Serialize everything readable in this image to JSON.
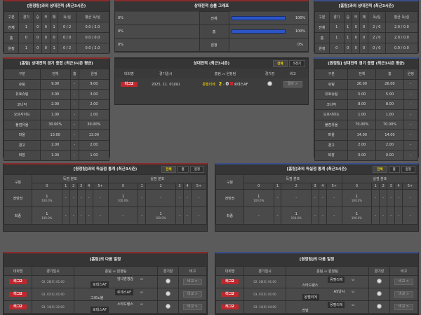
{
  "h2h_cols": [
    "구분",
    "경기",
    "승",
    "무",
    "패",
    "득/실",
    "평균 득/실"
  ],
  "h2h_left": {
    "title": "[원정팀]과의 상대전적 (최근3시즌)",
    "rows": [
      [
        "전체",
        "1",
        "0",
        "0",
        "1",
        "0 / 2",
        "0.0 / 2.0"
      ],
      [
        "홈",
        "0",
        "0",
        "0",
        "0",
        "0 / 0",
        "0.0 / 0.0"
      ],
      [
        "원정",
        "1",
        "0",
        "0",
        "1",
        "0 / 2",
        "0.0 / 2.0"
      ]
    ]
  },
  "h2h_right": {
    "title": "[홈팀]과의 상대전적 (최근3시즌)",
    "rows": [
      [
        "전체",
        "1",
        "1",
        "0",
        "0",
        "2 / 0",
        "2.0 / 0.0"
      ],
      [
        "홈",
        "1",
        "1",
        "0",
        "0",
        "2 / 0",
        "2.0 / 0.0"
      ],
      [
        "원정",
        "0",
        "0",
        "0",
        "0",
        "0 / 0",
        "0.0 / 0.0"
      ]
    ]
  },
  "graph": {
    "title": "상대전적 승률 그래프",
    "rows": [
      {
        "left": "0%",
        "label": "전체",
        "right": "100%",
        "value": 100
      },
      {
        "left": "0%",
        "label": "홈",
        "right": "100%",
        "value": 100
      },
      {
        "left": "0%",
        "label": "원정",
        "right": "0%",
        "value": 0
      }
    ],
    "bar_color": "#2c55c8"
  },
  "stats_cols": [
    "구분",
    "전체",
    "홈",
    "원정"
  ],
  "stats_left": {
    "title": "[홈팀] 상대전적 경기 종합 (최근3시즌 평균)",
    "rows": [
      [
        "슈팅",
        "9.00",
        "-",
        "9.00"
      ],
      [
        "유효슈팅",
        "3.00",
        "-",
        "3.00"
      ],
      [
        "코너킥",
        "2.00",
        "-",
        "2.00"
      ],
      [
        "오프사이드",
        "1.00",
        "-",
        "1.00"
      ],
      [
        "볼점유율",
        "30.00%",
        "-",
        "30.00%"
      ],
      [
        "파울",
        "13.00",
        "-",
        "13.00"
      ],
      [
        "경고",
        "2.00",
        "-",
        "2.00"
      ],
      [
        "퇴장",
        "1.00",
        "-",
        "1.00"
      ]
    ]
  },
  "stats_right": {
    "title": "[원정팀] 상대전적 경기 종합 (최근3시즌 평균)",
    "rows": [
      [
        "슈팅",
        "26.00",
        "26.00",
        "-"
      ],
      [
        "유효슈팅",
        "5.00",
        "5.00",
        "-"
      ],
      [
        "코너킥",
        "8.00",
        "8.00",
        "-"
      ],
      [
        "오프사이드",
        "1.00",
        "1.00",
        "-"
      ],
      [
        "볼점유율",
        "70.00%",
        "70.00%",
        "-"
      ],
      [
        "파울",
        "14.00",
        "14.00",
        "-"
      ],
      [
        "경고",
        "2.00",
        "2.00",
        "-"
      ],
      [
        "퇴장",
        "0.00",
        "0.00",
        "-"
      ]
    ]
  },
  "recent": {
    "title": "상대전적 (최근3시즌)",
    "tabs": [
      "전체",
      "5경기"
    ],
    "cols": [
      "대회명",
      "경기일시",
      "홈팀",
      "vs",
      "원정팀",
      "경기장",
      "비고"
    ],
    "match": {
      "league": "리그2",
      "date": "2025. 11. 01(토)",
      "home": "몽펠리에",
      "score_home": "2",
      "dash": "-",
      "score_away": "0",
      "away": "로데스AF",
      "button": "결과 >"
    }
  },
  "goals_cols": {
    "group": "구분",
    "scored": "득점 분포",
    "conceded": "실점 분포",
    "buckets": [
      "0",
      "1",
      "2",
      "3",
      "4",
      "5+"
    ]
  },
  "goals_left": {
    "title": "[원정팀]과의 득실점 통계 (최근3시즌)",
    "tabs": [
      "전체",
      "홈",
      "원정"
    ],
    "rows": [
      {
        "label": "전반전",
        "cells": [
          [
            "1",
            "100.0%"
          ],
          [
            "-"
          ],
          [
            "-"
          ],
          [
            "-"
          ],
          [
            "-"
          ],
          [
            "-"
          ],
          [
            "1",
            "100.0%"
          ],
          [
            "-"
          ],
          [
            "-"
          ],
          [
            "-"
          ],
          [
            "-"
          ],
          [
            "-"
          ]
        ]
      },
      {
        "label": "최종",
        "cells": [
          [
            "1",
            "100.0%"
          ],
          [
            "-"
          ],
          [
            "-"
          ],
          [
            "-"
          ],
          [
            "-"
          ],
          [
            "-"
          ],
          [
            "-"
          ],
          [
            "-"
          ],
          [
            "1",
            "100.0%"
          ],
          [
            "-"
          ],
          [
            "-"
          ],
          [
            "-"
          ]
        ]
      }
    ]
  },
  "goals_right": {
    "title": "[홈팀]과의 득실점 통계 (최근3시즌)",
    "tabs": [
      "전체",
      "홈",
      "원정"
    ],
    "rows": [
      {
        "label": "전반전",
        "cells": [
          [
            "1",
            "100.0%"
          ],
          [
            "-"
          ],
          [
            "-"
          ],
          [
            "-"
          ],
          [
            "-"
          ],
          [
            "-"
          ],
          [
            "1",
            "100.0%"
          ],
          [
            "-"
          ],
          [
            "-"
          ],
          [
            "-"
          ],
          [
            "-"
          ],
          [
            "-"
          ]
        ]
      },
      {
        "label": "최종",
        "cells": [
          [
            "-"
          ],
          [
            "-"
          ],
          [
            "1",
            "100.0%"
          ],
          [
            "-"
          ],
          [
            "-"
          ],
          [
            "-"
          ],
          [
            "1",
            "100.0%"
          ],
          [
            "-"
          ],
          [
            "-"
          ],
          [
            "-"
          ],
          [
            "-"
          ],
          [
            "-"
          ]
        ]
      }
    ]
  },
  "sched_cols": [
    "대회명",
    "경기일시",
    "홈팀",
    "vs",
    "원정팀",
    "경기장",
    "비고"
  ],
  "sched_left": {
    "title": "[홈팀]의 다음 일정",
    "rows": [
      {
        "league": "리그2",
        "date": "02. 28(토) 01:00",
        "home": "앙나방갱강",
        "away": "로데스AF",
        "hl": "away",
        "btn": "비교 >"
      },
      {
        "league": "리그2",
        "date": "03. 07(토) 01:00",
        "home": "로데스AF",
        "away": "그르노블",
        "hl": "home",
        "btn": "비교 >"
      },
      {
        "league": "리그2",
        "date": "03. 14(토) 22:00",
        "home": "스타드랭스",
        "away": "로데스AF",
        "hl": "away",
        "btn": "비교 >"
      }
    ]
  },
  "sched_right": {
    "title": "[원정팀]의 다음 일정",
    "rows": [
      {
        "league": "리그2",
        "date": "02. 28(토) 01:00",
        "home": "몽펠리에",
        "away": "스타드랭스",
        "hl": "home",
        "btn": "비교 >"
      },
      {
        "league": "리그2",
        "date": "03. 07(토) 01:00",
        "home": "AS낭시",
        "away": "몽펠리에",
        "hl": "away",
        "btn": "비교 >"
      },
      {
        "league": "리그2",
        "date": "03. 14(토) 04:00",
        "home": "몽펠리에",
        "away": "라발",
        "hl": "home",
        "btn": "비교 >"
      }
    ]
  }
}
